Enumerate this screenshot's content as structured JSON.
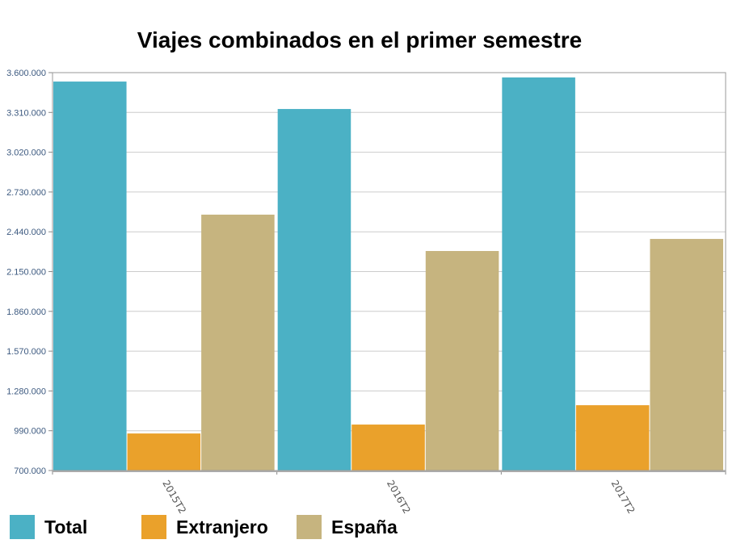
{
  "chart_data": {
    "type": "bar",
    "title": "Viajes combinados en el primer semestre",
    "categories": [
      "2015T2",
      "2016T2",
      "2017T2"
    ],
    "series": [
      {
        "name": "Total",
        "color": "#4bb1c5",
        "values": [
          3535000,
          3335000,
          3565000
        ]
      },
      {
        "name": "Extranjero",
        "color": "#eaa12b",
        "values": [
          970000,
          1035000,
          1176000
        ]
      },
      {
        "name": "España",
        "color": "#c6b47f",
        "values": [
          2565000,
          2300000,
          2388000
        ]
      }
    ],
    "ylim": [
      700000,
      3600000
    ],
    "yticks": [
      "700.000",
      "990.000",
      "1.280.000",
      "1.570.000",
      "1.860.000",
      "2.150.000",
      "2.440.000",
      "2.730.000",
      "3.020.000",
      "3.310.000",
      "3.600.000"
    ],
    "grid": true,
    "legend": "bottom"
  }
}
